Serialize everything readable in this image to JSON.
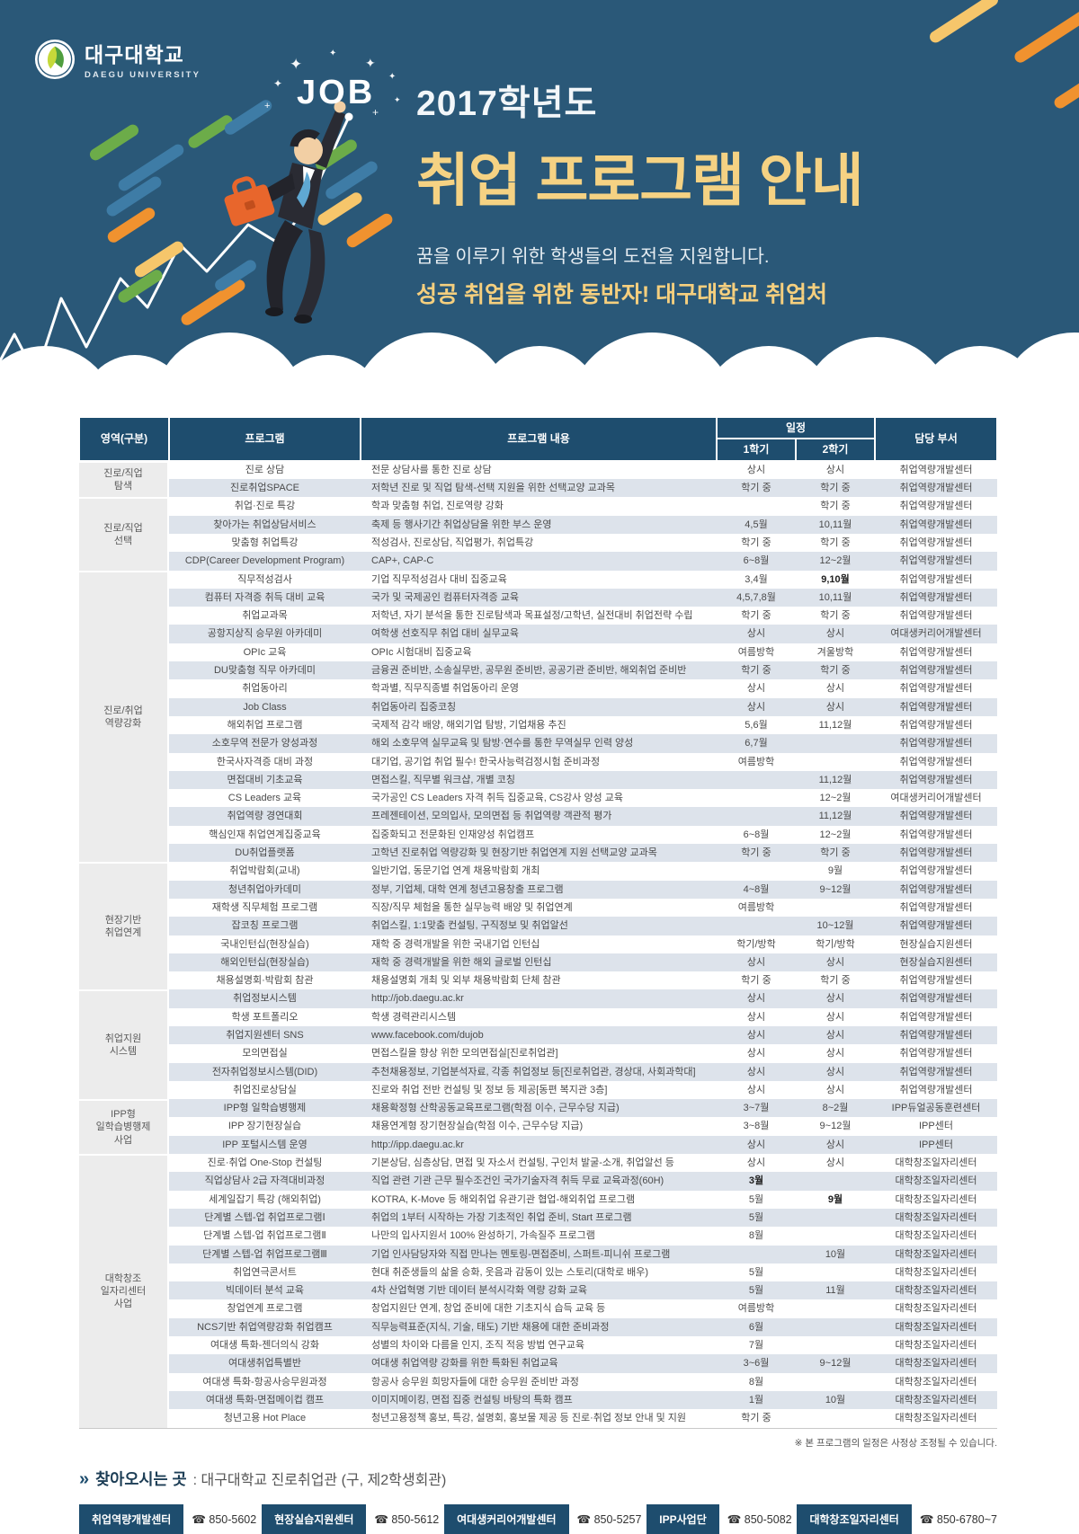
{
  "colors": {
    "hero_bg": "#2A5878",
    "title_yellow": "#F5D283",
    "accent_yellow": "#F5CF7E",
    "table_header_navy": "#1E4D6E",
    "row_stripe": "#DDE3EB",
    "group_cell_bg": "#ECECEC",
    "badge_navy": "#1E4D6E",
    "dash_green": "#6CAC49",
    "dash_blue": "#3E7CA6",
    "dash_orange": "#F0922F",
    "dash_yellow": "#F6C66B",
    "briefcase_orange": "#E8662C"
  },
  "header": {
    "university_kr": "대구대학교",
    "university_en": "DAEGU UNIVERSITY",
    "job_badge": "JOB",
    "year": "2017학년도",
    "title": "취업 프로그램 안내",
    "subtitle1": "꿈을 이루기 위한 학생들의 도전을 지원합니다.",
    "subtitle2": "성공 취업을 위한 동반자! 대구대학교 취업처"
  },
  "table": {
    "columns": {
      "area": "영역(구분)",
      "program": "프로그램",
      "content": "프로그램 내용",
      "schedule": "일정",
      "sem1": "1학기",
      "sem2": "2학기",
      "dept": "담당 부서"
    },
    "groups": [
      {
        "label": "진로/직업\n탐색",
        "rows": [
          {
            "program": "진로 상담",
            "desc": "전문 상담사를 통한 진로 상담",
            "sem1": "상시",
            "sem2": "상시",
            "dept": "취업역량개발센터"
          },
          {
            "program": "진로취업SPACE",
            "desc": "저학년 진로 및 직업 탐색-선택 지원을 위한 선택교양 교과목",
            "sem1": "학기 중",
            "sem2": "학기 중",
            "dept": "취업역량개발센터"
          }
        ]
      },
      {
        "label": "진로/직업\n선택",
        "rows": [
          {
            "program": "취업·진로 특강",
            "desc": "학과 맞춤형 취업, 진로역량 강화",
            "sem1": "",
            "sem2": "학기 중",
            "dept": "취업역량개발센터"
          },
          {
            "program": "찾아가는 취업상담서비스",
            "desc": "축제 등 행사기간 취업상담을 위한 부스 운영",
            "sem1": "4,5월",
            "sem2": "10,11월",
            "dept": "취업역량개발센터"
          },
          {
            "program": "맞춤형 취업특강",
            "desc": "적성검사, 진로상담, 직업평가, 취업특강",
            "sem1": "학기 중",
            "sem2": "학기 중",
            "dept": "취업역량개발센터"
          },
          {
            "program": "CDP(Career Development Program)",
            "desc": "CAP+, CAP-C",
            "sem1": "6~8월",
            "sem2": "12~2월",
            "dept": "취업역량개발센터"
          }
        ]
      },
      {
        "label": "진로/취업\n역량강화",
        "rows": [
          {
            "program": "직무적성검사",
            "desc": "기업 직무적성검사 대비 집중교육",
            "sem1": "3,4월",
            "sem2": "9,10월",
            "sem2_bold": true,
            "dept": "취업역량개발센터"
          },
          {
            "program": "컴퓨터 자격증 취득 대비 교육",
            "desc": "국가 및 국제공인 컴퓨터자격증 교육",
            "sem1": "4,5,7,8월",
            "sem2": "10,11월",
            "dept": "취업역량개발센터"
          },
          {
            "program": "취업교과목",
            "desc": "저학년, 자기 분석을 통한 진로탐색과 목표설정/고학년, 실전대비 취업전략 수립",
            "sem1": "학기 중",
            "sem2": "학기 중",
            "dept": "취업역량개발센터"
          },
          {
            "program": "공항지상직 승무원 아카데미",
            "desc": "여학생 선호직무 취업 대비 실무교육",
            "sem1": "상시",
            "sem2": "상시",
            "dept": "여대생커리어개발센터"
          },
          {
            "program": "OPIc 교육",
            "desc": "OPIc 시험대비 집중교육",
            "sem1": "여름방학",
            "sem2": "겨울방학",
            "dept": "취업역량개발센터"
          },
          {
            "program": "DU맞춤형 직무 아카데미",
            "desc": "금융권 준비반, 소송실무반, 공무원 준비반, 공공기관 준비반, 해외취업 준비반",
            "sem1": "학기 중",
            "sem2": "학기 중",
            "dept": "취업역량개발센터"
          },
          {
            "program": "취업동아리",
            "desc": "학과별, 직무직종별 취업동아리 운영",
            "sem1": "상시",
            "sem2": "상시",
            "dept": "취업역량개발센터"
          },
          {
            "program": "Job Class",
            "desc": "취업동아리 집중코칭",
            "sem1": "상시",
            "sem2": "상시",
            "dept": "취업역량개발센터"
          },
          {
            "program": "해외취업 프로그램",
            "desc": "국제적 감각 배양, 해외기업 탐방, 기업채용 추진",
            "sem1": "5,6월",
            "sem2": "11,12월",
            "dept": "취업역량개발센터"
          },
          {
            "program": "소호무역 전문가 양성과정",
            "desc": "해외 소호무역 실무교육 및 탐방·연수를 통한 무역실무 인력 양성",
            "sem1": "6,7월",
            "sem2": "",
            "dept": "취업역량개발센터"
          },
          {
            "program": "한국사자격증 대비 과정",
            "desc": "대기업, 공기업 취업 필수! 한국사능력검정시험 준비과정",
            "sem1": "여름방학",
            "sem2": "",
            "dept": "취업역량개발센터"
          },
          {
            "program": "면접대비 기초교육",
            "desc": "면접스킬, 직무별 워크샵, 개별 코칭",
            "sem1": "",
            "sem2": "11,12월",
            "dept": "취업역량개발센터"
          },
          {
            "program": "CS Leaders 교육",
            "desc": "국가공인 CS Leaders 자격 취득 집중교육, CS강사 양성 교육",
            "sem1": "",
            "sem2": "12~2월",
            "dept": "여대생커리어개발센터"
          },
          {
            "program": "취업역량 경연대회",
            "desc": "프레젠테이션, 모의입사, 모의면접 등 취업역량 객관적 평가",
            "sem1": "",
            "sem2": "11,12월",
            "dept": "취업역량개발센터"
          },
          {
            "program": "핵심인재 취업연계집중교육",
            "desc": "집중화되고 전문화된 인재양성 취업캠프",
            "sem1": "6~8월",
            "sem2": "12~2월",
            "dept": "취업역량개발센터"
          },
          {
            "program": "DU취업플랫폼",
            "desc": "고학년 진로취업 역량강화 및 현장기반 취업연계 지원 선택교양 교과목",
            "sem1": "학기 중",
            "sem2": "학기 중",
            "dept": "취업역량개발센터"
          }
        ]
      },
      {
        "label": "현장기반\n취업연계",
        "rows": [
          {
            "program": "취업박람회(교내)",
            "desc": "일반기업, 동문기업 연계 채용박람회 개최",
            "sem1": "",
            "sem2": "9월",
            "dept": "취업역량개발센터"
          },
          {
            "program": "청년취업아카데미",
            "desc": "정부, 기업체, 대학 연계 청년고용창출 프로그램",
            "sem1": "4~8월",
            "sem2": "9~12월",
            "dept": "취업역량개발센터"
          },
          {
            "program": "재학생 직무체험 프로그램",
            "desc": "직장/직무 체험을 통한 실무능력 배양 및 취업연계",
            "sem1": "여름방학",
            "sem2": "",
            "dept": "취업역량개발센터"
          },
          {
            "program": "잡코칭 프로그램",
            "desc": "취업스킬, 1:1맞춤 컨설팅, 구직정보 및 취업알선",
            "sem1": "",
            "sem2": "10~12월",
            "dept": "취업역량개발센터"
          },
          {
            "program": "국내인턴십(현장실습)",
            "desc": "재학 중 경력개발을 위한 국내기업 인턴십",
            "sem1": "학기/방학",
            "sem2": "학기/방학",
            "dept": "현장실습지원센터"
          },
          {
            "program": "해외인턴십(현장실습)",
            "desc": "재학 중 경력개발을 위한 해외 글로벌 인턴십",
            "sem1": "상시",
            "sem2": "상시",
            "dept": "현장실습지원센터"
          },
          {
            "program": "채용설명회·박람회 참관",
            "desc": "채용설명회 개최 및 외부 채용박람회 단체 참관",
            "sem1": "학기 중",
            "sem2": "학기 중",
            "dept": "취업역량개발센터"
          }
        ]
      },
      {
        "label": "취업지원\n시스템",
        "rows": [
          {
            "program": "취업정보시스템",
            "desc": "http://job.daegu.ac.kr",
            "sem1": "상시",
            "sem2": "상시",
            "dept": "취업역량개발센터"
          },
          {
            "program": "학생 포트폴리오",
            "desc": "학생 경력관리시스템",
            "sem1": "상시",
            "sem2": "상시",
            "dept": "취업역량개발센터"
          },
          {
            "program": "취업지원센터 SNS",
            "desc": "www.facebook.com/dujob",
            "sem1": "상시",
            "sem2": "상시",
            "dept": "취업역량개발센터"
          },
          {
            "program": "모의면접실",
            "desc": "면접스킬을 향상 위한 모의면접실[진로취업관]",
            "sem1": "상시",
            "sem2": "상시",
            "dept": "취업역량개발센터"
          },
          {
            "program": "전자취업정보시스템(DID)",
            "desc": "추천채용정보, 기업분석자료, 각종 취업정보 등[진로취업관, 경상대, 사회과학대]",
            "sem1": "상시",
            "sem2": "상시",
            "dept": "취업역량개발센터"
          },
          {
            "program": "취업진로상담실",
            "desc": "진로와 취업 전반 컨설팅 및 정보 등 제공[동편 복지관 3층]",
            "sem1": "상시",
            "sem2": "상시",
            "dept": "취업역량개발센터"
          }
        ]
      },
      {
        "label": "IPP형\n일학습병행제\n사업",
        "rows": [
          {
            "program": "IPP형 일학습병행제",
            "desc": "채용확정형 산학공동교육프로그램(학점 이수, 근무수당 지급)",
            "sem1": "3~7월",
            "sem2": "8~2월",
            "dept": "IPP듀얼공동훈련센터"
          },
          {
            "program": "IPP 장기현장실습",
            "desc": "채용연계형 장기현장실습(학점 이수, 근무수당 지급)",
            "sem1": "3~8월",
            "sem2": "9~12월",
            "dept": "IPP센터"
          },
          {
            "program": "IPP 포털시스템 운영",
            "desc": "http://ipp.daegu.ac.kr",
            "sem1": "상시",
            "sem2": "상시",
            "dept": "IPP센터"
          }
        ]
      },
      {
        "label": "대학창조\n일자리센터\n사업",
        "rows": [
          {
            "program": "진로·취업 One-Stop 컨설팅",
            "desc": "기본상담, 심층상담, 면접 및 자소서 컨설팅, 구인처 발굴-소개, 취업알선 등",
            "sem1": "상시",
            "sem2": "상시",
            "dept": "대학창조일자리센터"
          },
          {
            "program": "직업상담사 2급 자격대비과정",
            "desc": "직업 관련 기관 근무 필수조건인 국가기술자격 취득 무료 교육과정(60H)",
            "sem1": "3월",
            "sem1_bold": true,
            "sem2": "",
            "dept": "대학창조일자리센터"
          },
          {
            "program": "세계일잡기 특강 (해외취업)",
            "desc": "KOTRA, K-Move 등 해외취업 유관기관 협업-해외취업 프로그램",
            "sem1": "5월",
            "sem2": "9월",
            "sem2_bold": true,
            "dept": "대학창조일자리센터"
          },
          {
            "program": "단계별 스텝-업 취업프로그램Ⅰ",
            "desc": "취업의 1부터 시작하는 가장 기초적인 취업 준비, Start 프로그램",
            "sem1": "5월",
            "sem2": "",
            "dept": "대학창조일자리센터"
          },
          {
            "program": "단계별 스텝-업 취업프로그램Ⅱ",
            "desc": "나만의 입사지원서 100% 완성하기, 가속질주 프로그램",
            "sem1": "8월",
            "sem2": "",
            "dept": "대학창조일자리센터"
          },
          {
            "program": "단계별 스텝-업 취업프로그램Ⅲ",
            "desc": "기업 인사담당자와 직접 만나는 멘토링-면접준비, 스퍼트-피니쉬 프로그램",
            "sem1": "",
            "sem2": "10월",
            "dept": "대학창조일자리센터"
          },
          {
            "program": "취업연극콘서트",
            "desc": "현대 취준생들의 삶을 승화, 웃음과 감동이 있는 스토리(대학로 배우)",
            "sem1": "5월",
            "sem2": "",
            "dept": "대학창조일자리센터"
          },
          {
            "program": "빅데이터 분석 교육",
            "desc": "4차 산업혁명 기반 데이터 분석시각화 역량 강화 교육",
            "sem1": "5월",
            "sem2": "11월",
            "dept": "대학창조일자리센터"
          },
          {
            "program": "창업연계 프로그램",
            "desc": "창업지원단 연계, 창업 준비에 대한 기초지식 습득 교육 등",
            "sem1": "여름방학",
            "sem2": "",
            "dept": "대학창조일자리센터"
          },
          {
            "program": "NCS기반 취업역량강화 취업캠프",
            "desc": "직무능력표준(지식, 기술, 태도) 기반 채용에 대한 준비과정",
            "sem1": "6월",
            "sem2": "",
            "dept": "대학창조일자리센터"
          },
          {
            "program": "여대생 특화-젠더의식 강화",
            "desc": "성별의 차이와 다름을 인지, 조직 적응 방법 연구교육",
            "sem1": "7월",
            "sem2": "",
            "dept": "대학창조일자리센터"
          },
          {
            "program": "여대생취업특별반",
            "desc": "여대생 취업역량 강화를 위한 특화된 취업교육",
            "sem1": "3~6월",
            "sem2": "9~12월",
            "dept": "대학창조일자리센터"
          },
          {
            "program": "여대생 특화-항공사승무원과정",
            "desc": "항공사 승무원 희망자들에 대한 승무원 준비반 과정",
            "sem1": "8월",
            "sem2": "",
            "dept": "대학창조일자리센터"
          },
          {
            "program": "여대생 특화-면접메이컵 캠프",
            "desc": "이미지메이킹, 면접 집중 컨설팅 바탕의 특화 캠프",
            "sem1": "1월",
            "sem2": "10월",
            "dept": "대학창조일자리센터"
          },
          {
            "program": "청년고용 Hot Place",
            "desc": "청년고용정책 홍보, 특강, 설명회, 홍보물 제공 등 진로·취업 정보 안내 및 지원",
            "sem1": "학기 중",
            "sem2": "",
            "dept": "대학창조일자리센터"
          }
        ]
      }
    ]
  },
  "footnote": "※ 본 프로그램의 일정은 사정상 조정될 수 있습니다.",
  "footer": {
    "arrow": "»",
    "location_label": "찾아오시는 곳",
    "location_value": ": 대구대학교 진로취업관 (구, 제2학생회관)",
    "phone_icon": "☎",
    "contacts": [
      {
        "name": "취업역량개발센터",
        "phone": "850-5602"
      },
      {
        "name": "현장실습지원센터",
        "phone": "850-5612"
      },
      {
        "name": "여대생커리어개발센터",
        "phone": "850-5257"
      },
      {
        "name": "IPP사업단",
        "phone": "850-5082"
      },
      {
        "name": "대학창조일자리센터",
        "phone": "850-6780~7"
      }
    ]
  }
}
